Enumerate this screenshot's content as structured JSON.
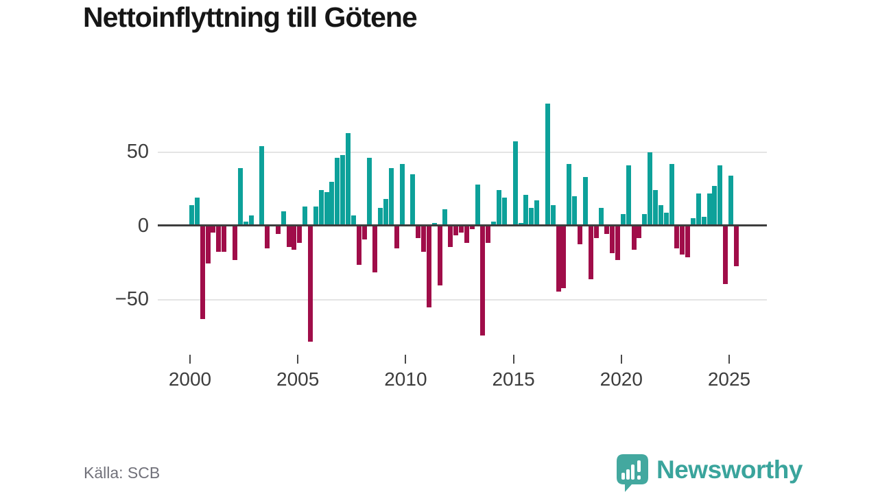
{
  "title": "Nettoinflyttning till Götene",
  "source_note": "Källa: SCB",
  "branding": {
    "name": "Newsworthy",
    "icon": "newsworthy-speech-bubble-bar-chart-icon"
  },
  "colors": {
    "positive_bar": "#0da19a",
    "negative_bar": "#a00d49",
    "axis_line": "#3d3d3d",
    "gridline": "#e4e4e4",
    "tick_label": "#3d3d3d",
    "title_text": "#161616",
    "source_text": "#71717a",
    "logo_teal": "#43a89f",
    "logo_text_teal": "#3aa49c",
    "background": "#ffffff"
  },
  "chart_data": {
    "type": "bar",
    "title": "Nettoinflyttning till Götene",
    "frequency": "quarterly",
    "start_period": "2000Q1",
    "end_period": "2025Q2",
    "values": [
      14,
      19,
      -63,
      -25,
      -4,
      -17,
      -17,
      0,
      -23,
      39,
      3,
      7,
      0,
      54,
      -15,
      0,
      -5,
      10,
      -14,
      -16,
      -11,
      13,
      -78,
      13,
      24,
      23,
      30,
      46,
      48,
      63,
      7,
      -26,
      -9,
      46,
      -31,
      12,
      18,
      39,
      -15,
      42,
      0,
      35,
      -8,
      -17,
      -55,
      2,
      -40,
      11,
      -14,
      -6,
      -4,
      -11,
      -2,
      28,
      -74,
      -11,
      3,
      24,
      19,
      0,
      57,
      2,
      21,
      12,
      17,
      0,
      83,
      14,
      -44,
      -42,
      42,
      20,
      -12,
      33,
      -36,
      -8,
      12,
      -5,
      -18,
      -23,
      8,
      41,
      -16,
      -8,
      8,
      50,
      24,
      14,
      9,
      42,
      -15,
      -19,
      -21,
      5,
      22,
      6,
      22,
      27,
      41,
      -39,
      34,
      -27
    ],
    "x_tick_labels": [
      "2000",
      "2005",
      "2010",
      "2015",
      "2020",
      "2025"
    ],
    "x_tick_indices": [
      0,
      20,
      40,
      60,
      80,
      100
    ],
    "y_tick_labels": [
      "50",
      "0",
      "−50"
    ],
    "y_tick_values": [
      50,
      0,
      -50
    ],
    "ylim": [
      -85,
      90
    ],
    "grid": "horizontal-only",
    "legend": "none"
  }
}
